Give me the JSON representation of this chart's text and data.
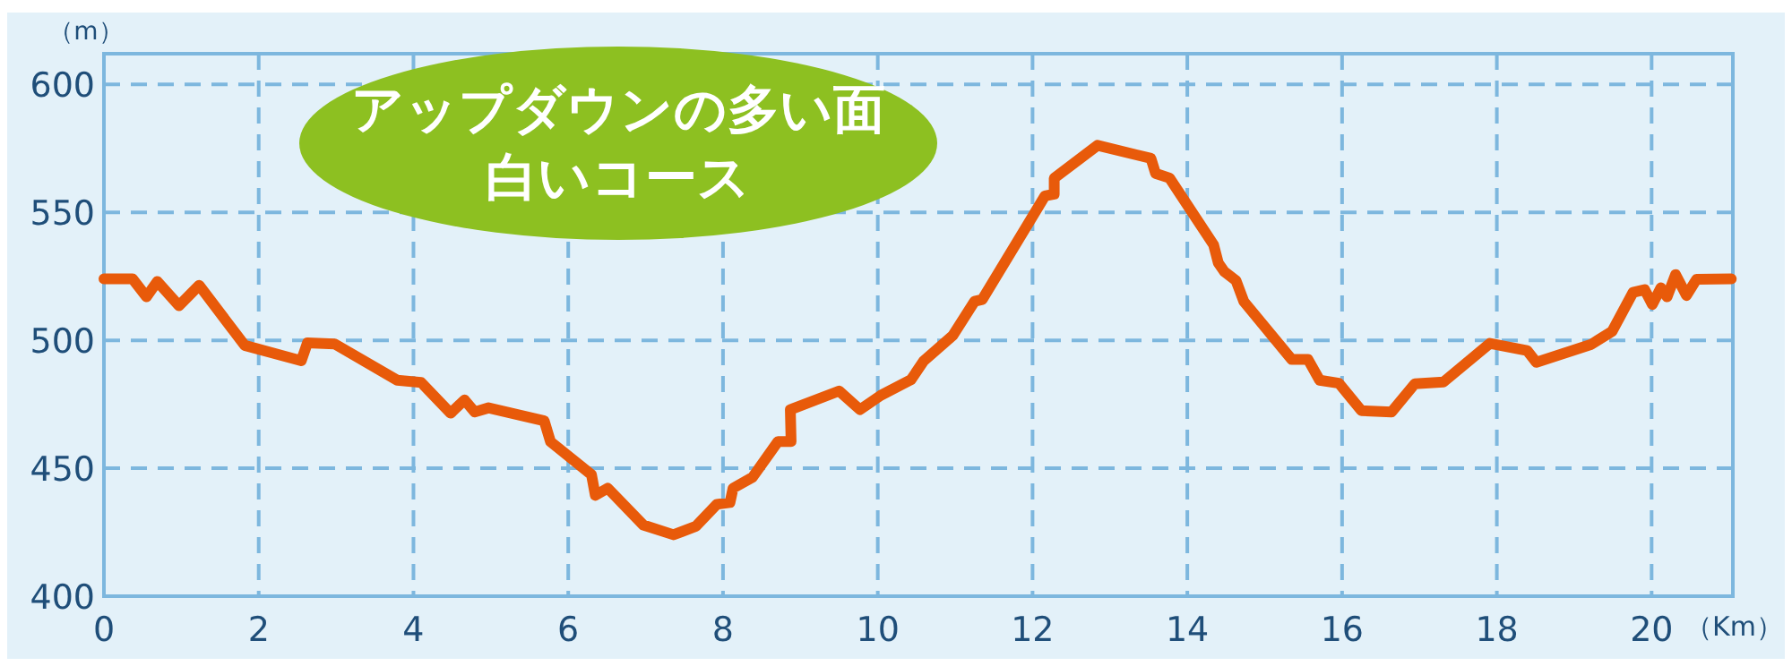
{
  "chart_data": {
    "type": "line",
    "title": "アップダウンの多い面白いコース",
    "xlabel": "（Km）",
    "ylabel": "（m）",
    "xlim": [
      0,
      21.05
    ],
    "ylim": [
      400,
      612
    ],
    "xticks": [
      0,
      2,
      4,
      6,
      8,
      10,
      12,
      14,
      16,
      18,
      20
    ],
    "yticks": [
      400,
      450,
      500,
      550,
      600
    ],
    "grid": true,
    "series": [
      {
        "color": "#e85a0a",
        "x": [
          0,
          0.37,
          0.55,
          0.69,
          0.97,
          1.23,
          1.82,
          2.55,
          2.63,
          2.98,
          3.79,
          4.1,
          4.48,
          4.66,
          4.79,
          4.97,
          5.69,
          5.77,
          6.3,
          6.35,
          6.51,
          6.97,
          7.36,
          7.65,
          7.92,
          8.09,
          8.13,
          8.38,
          8.71,
          8.88,
          8.87,
          9.5,
          9.77,
          10.04,
          10.43,
          10.59,
          10.97,
          11.25,
          11.35,
          12.16,
          12.28,
          12.28,
          12.84,
          13.53,
          13.59,
          13.77,
          14.34,
          14.4,
          14.48,
          14.63,
          14.73,
          15.35,
          15.56,
          15.71,
          15.96,
          16.25,
          16.64,
          16.94,
          17.31,
          17.91,
          18.39,
          18.51,
          19.22,
          19.49,
          19.76,
          19.91,
          20.01,
          20.12,
          20.2,
          20.31,
          20.45,
          20.58,
          21.03
        ],
        "values": [
          524,
          524,
          517,
          523,
          513.5,
          521.5,
          498,
          492,
          499,
          498.6,
          484.4,
          483.5,
          471.5,
          476.7,
          472,
          473.6,
          468.5,
          460.4,
          447.5,
          439.4,
          442.2,
          427.8,
          424,
          427.3,
          435.9,
          436.6,
          442.2,
          446.4,
          460.4,
          460.4,
          472.9,
          480.2,
          472.9,
          478.5,
          484.6,
          491.8,
          501.9,
          515.2,
          515.9,
          556.4,
          557.1,
          563.4,
          576.2,
          571.1,
          565.2,
          563.4,
          537.3,
          530.3,
          526.8,
          523.3,
          515.2,
          492.5,
          492.5,
          484.4,
          483.2,
          472.5,
          472,
          483,
          483.7,
          498.8,
          496,
          491.4,
          498.4,
          503.5,
          518.7,
          519.8,
          514,
          520.5,
          517,
          525.7,
          517.5,
          523.8,
          524
        ]
      }
    ]
  }
}
